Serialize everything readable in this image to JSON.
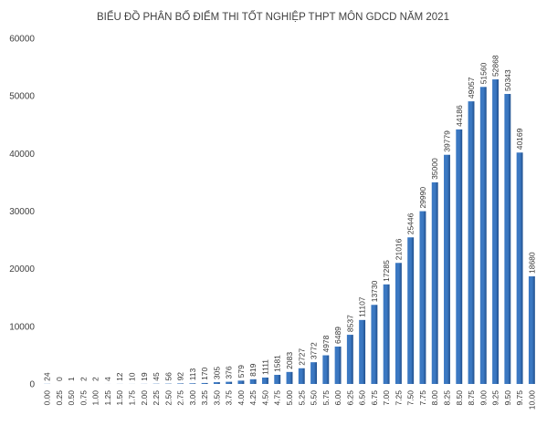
{
  "chart_data": {
    "type": "bar",
    "title": "BIỂU ĐỒ PHÂN BỐ ĐIỂM THI TỐT NGHIỆP THPT MÔN GDCD NĂM 2021",
    "xlabel": "",
    "ylabel": "",
    "ylim": [
      0,
      60000
    ],
    "yticks": [
      "0",
      "10000",
      "20000",
      "30000",
      "40000",
      "50000",
      "60000"
    ],
    "grid": false,
    "legend": "none",
    "bar_color": "#3b78c2",
    "bar_color_dark": "#1f4e8c",
    "categories": [
      "0.00",
      "0.25",
      "0.50",
      "0.75",
      "1.00",
      "1.25",
      "1.50",
      "1.75",
      "2.00",
      "2.25",
      "2.50",
      "2.75",
      "3.00",
      "3.25",
      "3.50",
      "3.75",
      "4.00",
      "4.25",
      "4.50",
      "4.75",
      "5.00",
      "5.25",
      "5.50",
      "5.75",
      "6.00",
      "6.25",
      "6.50",
      "6.75",
      "7.00",
      "7.25",
      "7.50",
      "7.75",
      "8.00",
      "8.25",
      "8.50",
      "8.75",
      "9.00",
      "9.25",
      "9.50",
      "9.75",
      "10.00"
    ],
    "values": [
      24,
      0,
      1,
      2,
      2,
      4,
      12,
      10,
      19,
      45,
      56,
      92,
      113,
      170,
      305,
      376,
      579,
      819,
      1111,
      1581,
      2083,
      2727,
      3772,
      4978,
      6489,
      8537,
      11107,
      13730,
      17285,
      21016,
      25446,
      29990,
      35000,
      39779,
      44186,
      49057,
      51560,
      52868,
      50343,
      40169,
      18680
    ],
    "labels": [
      "24",
      "0",
      "1",
      "2",
      "2",
      "4",
      "12",
      "10",
      "19",
      "45",
      "56",
      "92",
      "113",
      "170",
      "305",
      "376",
      "579",
      "819",
      "1111",
      "1581",
      "2083",
      "2727",
      "3772",
      "4978",
      "6489",
      "8537",
      "11107",
      "13730",
      "17285",
      "21016",
      "25446",
      "29990",
      "35000",
      "39779",
      "44186",
      "49057",
      "51560",
      "52868",
      "50343",
      "40169",
      "18680"
    ]
  }
}
